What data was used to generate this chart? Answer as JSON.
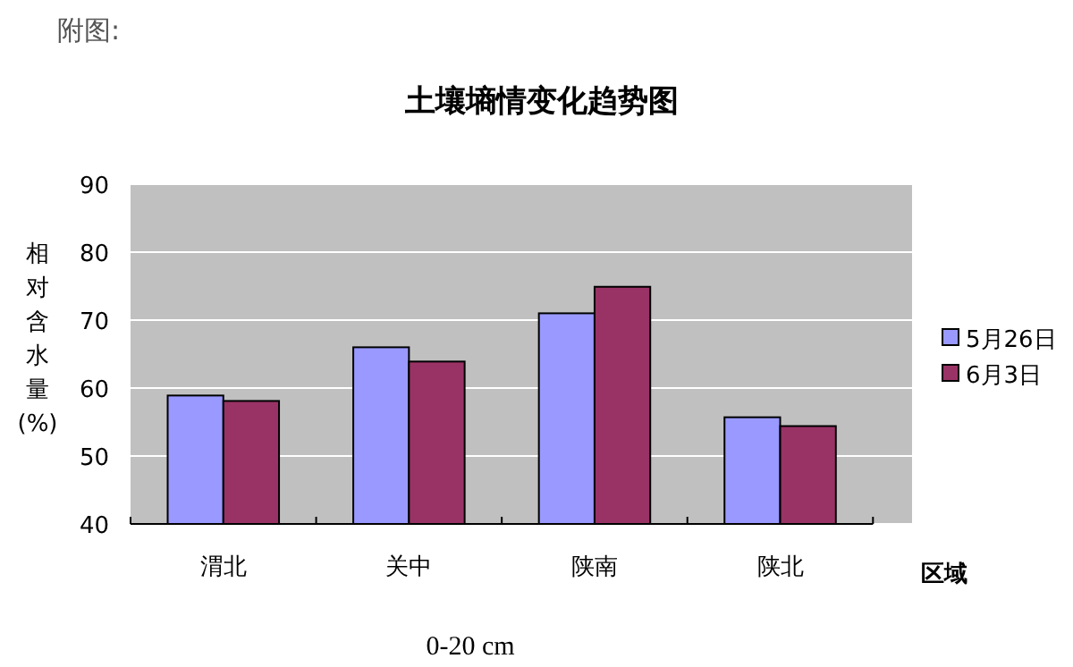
{
  "chart_data": {
    "type": "bar",
    "title": "土壤墒情变化趋势图",
    "xlabel": "区域",
    "ylabel": "相对含水量(%)",
    "annotations": [
      "附图:",
      "0-20 cm"
    ],
    "categories": [
      "渭北",
      "关中",
      "陕南",
      "陕北"
    ],
    "series": [
      {
        "name": "5月26日",
        "color": "#9999ff",
        "values": [
          58.9,
          66,
          71,
          55.7
        ]
      },
      {
        "name": "6月3日",
        "color": "#993366",
        "values": [
          58.1,
          63.9,
          74.9,
          54.4
        ]
      }
    ],
    "ylim": [
      40,
      90
    ],
    "yticks": [
      40,
      50,
      60,
      70,
      80,
      90
    ],
    "grid": "y",
    "legend": "right"
  }
}
